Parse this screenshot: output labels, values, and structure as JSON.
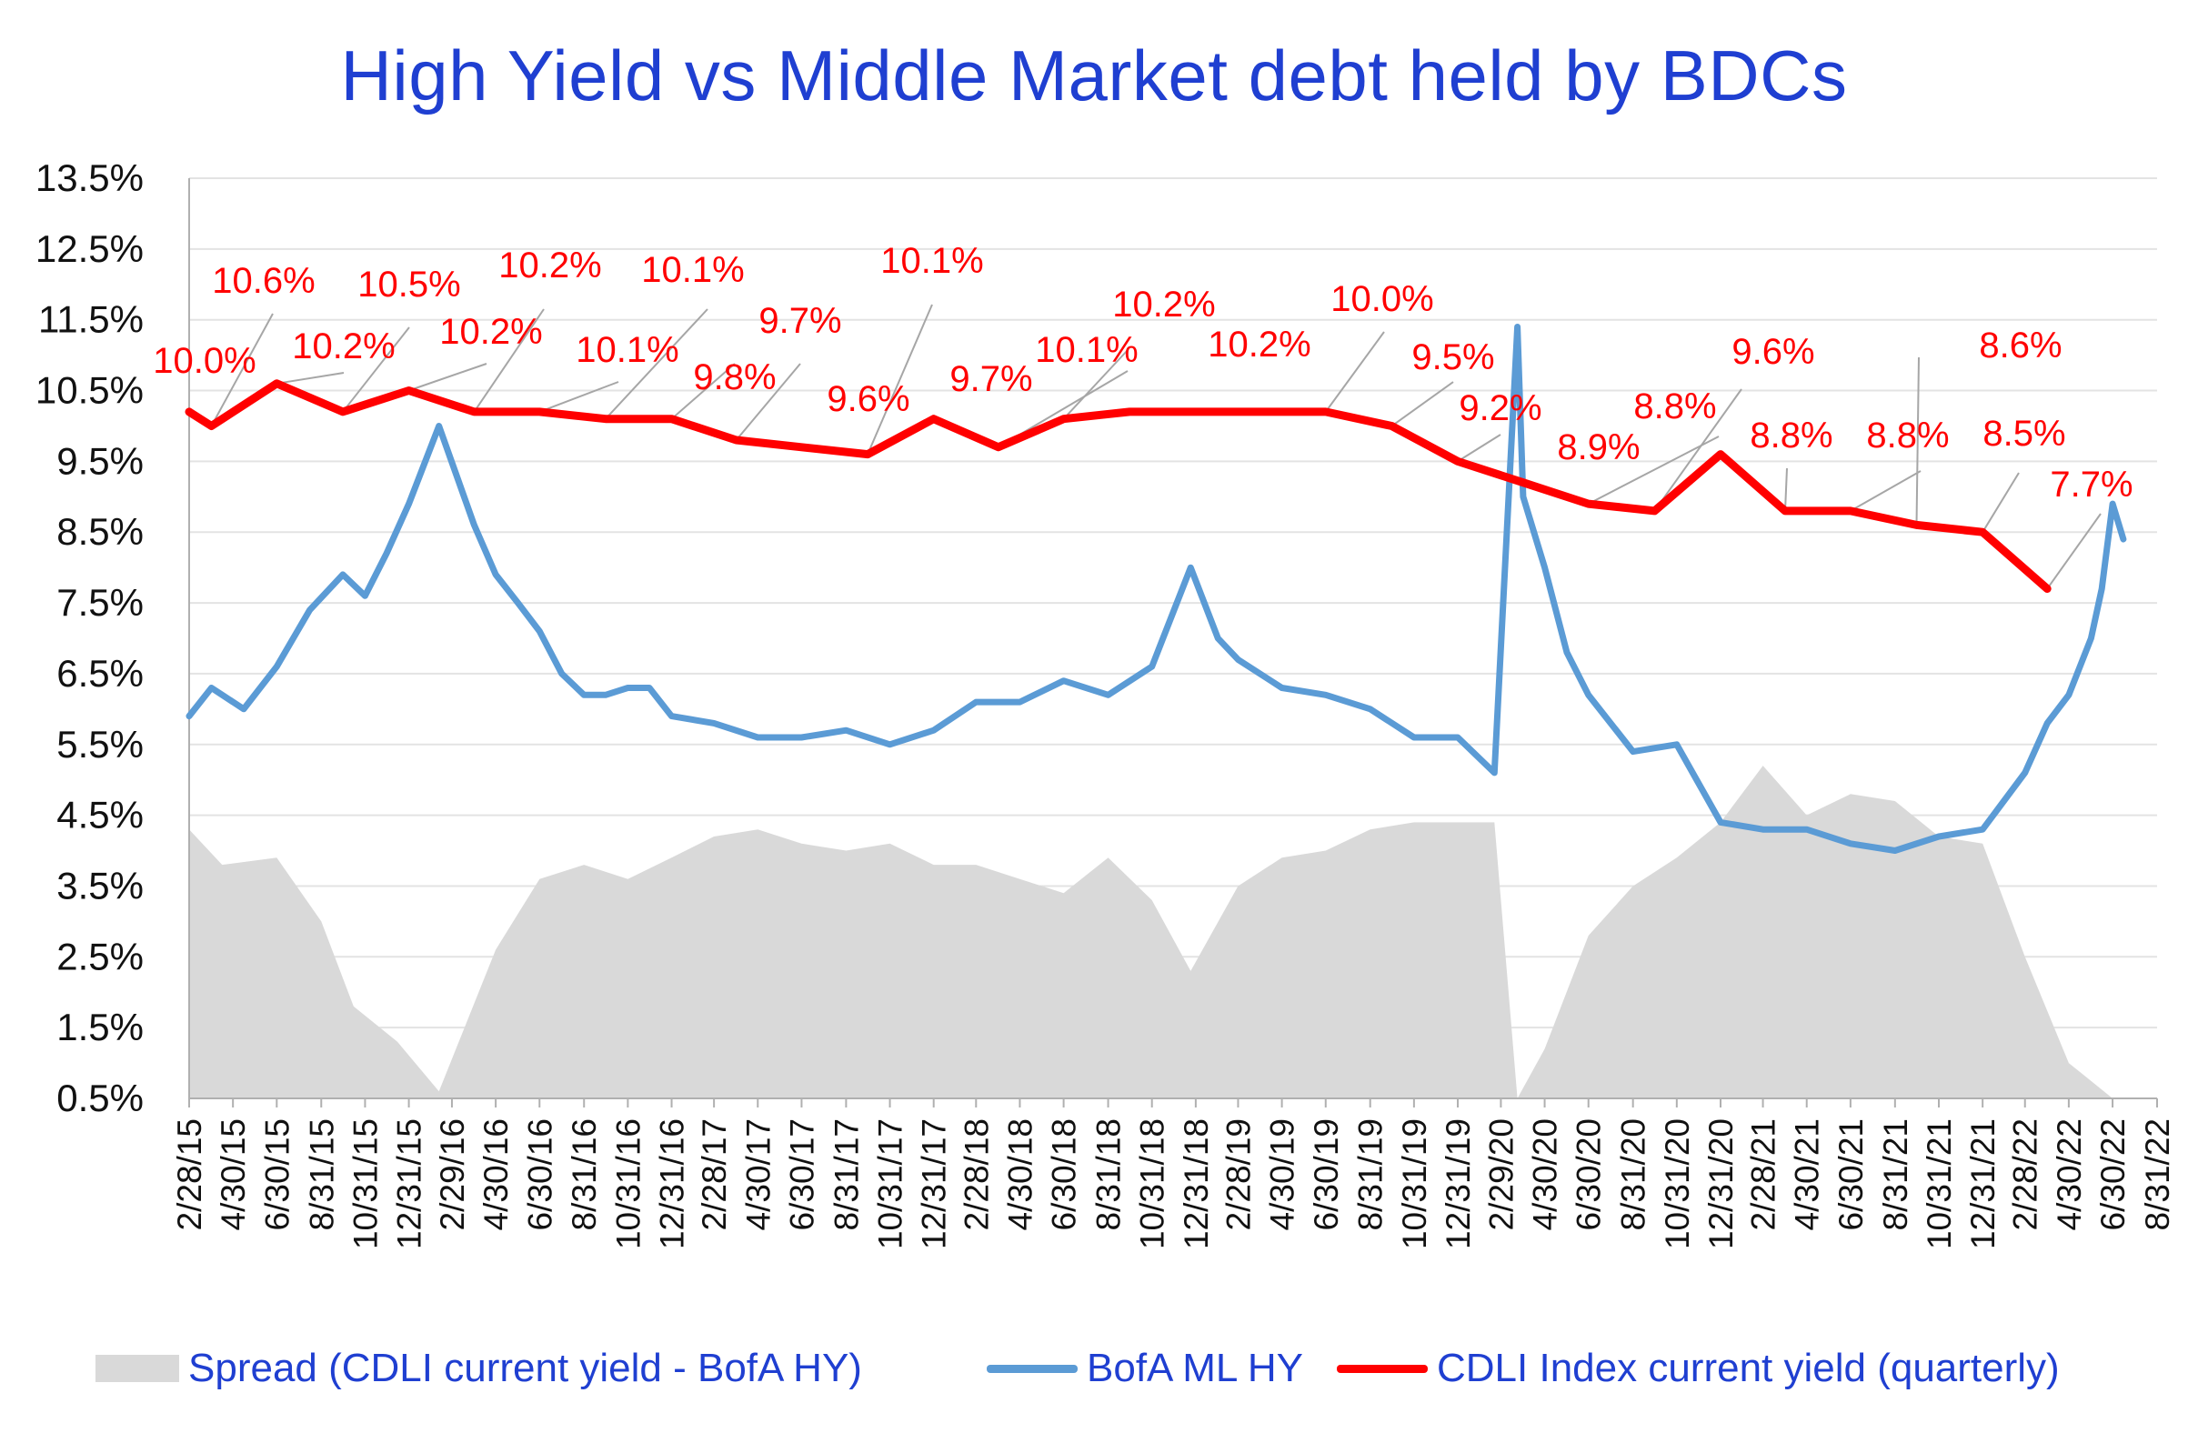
{
  "chart_data": {
    "type": "area",
    "title": "High Yield  vs  Middle Market debt held by BDCs",
    "xlabel": "",
    "ylabel": "",
    "ylim": [
      0.5,
      13.5
    ],
    "y_ticks": [
      "0.5%",
      "1.5%",
      "2.5%",
      "3.5%",
      "4.5%",
      "5.5%",
      "6.5%",
      "7.5%",
      "8.5%",
      "9.5%",
      "10.5%",
      "11.5%",
      "12.5%",
      "13.5%"
    ],
    "x_ticks": [
      "2/28/15",
      "4/30/15",
      "6/30/15",
      "8/31/15",
      "10/31/15",
      "12/31/15",
      "2/29/16",
      "4/30/16",
      "6/30/16",
      "8/31/16",
      "10/31/16",
      "12/31/16",
      "2/28/17",
      "4/30/17",
      "6/30/17",
      "8/31/17",
      "10/31/17",
      "12/31/17",
      "2/28/18",
      "4/30/18",
      "6/30/18",
      "8/31/18",
      "10/31/18",
      "12/31/18",
      "2/28/19",
      "4/30/19",
      "6/30/19",
      "8/31/19",
      "10/31/19",
      "12/31/19",
      "2/29/20",
      "4/30/20",
      "6/30/20",
      "8/31/20",
      "10/31/20",
      "12/31/20",
      "2/28/21",
      "4/30/21",
      "6/30/21",
      "8/31/21",
      "10/31/21",
      "12/31/21",
      "2/28/22",
      "4/30/22",
      "6/30/22",
      "8/31/22"
    ],
    "grid": true,
    "legend_position": "bottom",
    "series": [
      {
        "name": "Spread (CDLI current yield - BofA HY)",
        "type": "area",
        "color": "#d9d9d9",
        "x": [
          "2015-02-28",
          "2015-04-15",
          "2015-06-30",
          "2015-08-31",
          "2015-10-15",
          "2015-12-15",
          "2016-02-11",
          "2016-04-30",
          "2016-06-30",
          "2016-08-31",
          "2016-10-31",
          "2016-12-31",
          "2017-02-28",
          "2017-04-30",
          "2017-06-30",
          "2017-08-31",
          "2017-10-31",
          "2017-12-31",
          "2018-02-28",
          "2018-04-30",
          "2018-06-30",
          "2018-08-31",
          "2018-10-31",
          "2018-12-24",
          "2019-02-28",
          "2019-04-30",
          "2019-06-30",
          "2019-08-31",
          "2019-10-31",
          "2019-12-31",
          "2020-02-20",
          "2020-03-23",
          "2020-04-30",
          "2020-06-30",
          "2020-08-31",
          "2020-10-31",
          "2020-12-31",
          "2021-02-28",
          "2021-04-30",
          "2021-06-30",
          "2021-08-31",
          "2021-10-31",
          "2021-12-31",
          "2022-02-28",
          "2022-04-30",
          "2022-06-30",
          "2022-07-15"
        ],
        "values": [
          4.3,
          3.8,
          3.9,
          3.0,
          1.8,
          1.3,
          0.6,
          2.6,
          3.6,
          3.8,
          3.6,
          3.9,
          4.2,
          4.3,
          4.1,
          4.0,
          4.1,
          3.8,
          3.8,
          3.6,
          3.4,
          3.9,
          3.3,
          2.3,
          3.5,
          3.9,
          4.0,
          4.3,
          4.4,
          4.4,
          4.4,
          0.5,
          1.2,
          2.8,
          3.5,
          3.9,
          4.4,
          5.2,
          4.5,
          4.8,
          4.7,
          4.2,
          4.1,
          2.5,
          1.0,
          0.5,
          0.5
        ]
      },
      {
        "name": "BofA ML HY",
        "type": "line",
        "color": "#5b9bd5",
        "x": [
          "2015-02-28",
          "2015-03-31",
          "2015-05-15",
          "2015-06-30",
          "2015-08-15",
          "2015-09-30",
          "2015-10-31",
          "2015-11-30",
          "2015-12-31",
          "2016-02-11",
          "2016-03-31",
          "2016-04-30",
          "2016-05-31",
          "2016-06-30",
          "2016-07-31",
          "2016-08-31",
          "2016-09-30",
          "2016-10-31",
          "2016-11-30",
          "2016-12-31",
          "2017-02-28",
          "2017-04-30",
          "2017-06-30",
          "2017-08-31",
          "2017-10-31",
          "2017-12-31",
          "2018-02-28",
          "2018-04-30",
          "2018-06-30",
          "2018-08-31",
          "2018-10-31",
          "2018-12-24",
          "2019-01-31",
          "2019-02-28",
          "2019-04-30",
          "2019-06-30",
          "2019-08-31",
          "2019-10-31",
          "2019-12-31",
          "2020-02-20",
          "2020-03-23",
          "2020-03-31",
          "2020-04-30",
          "2020-05-31",
          "2020-06-30",
          "2020-08-31",
          "2020-10-31",
          "2020-12-31",
          "2021-02-28",
          "2021-04-30",
          "2021-06-30",
          "2021-08-31",
          "2021-10-31",
          "2021-12-31",
          "2022-02-28",
          "2022-03-31",
          "2022-04-30",
          "2022-05-31",
          "2022-06-15",
          "2022-06-30",
          "2022-07-15"
        ],
        "values": [
          5.9,
          6.3,
          6.0,
          6.6,
          7.4,
          7.9,
          7.6,
          8.2,
          8.9,
          10.0,
          8.6,
          7.9,
          7.5,
          7.1,
          6.5,
          6.2,
          6.2,
          6.3,
          6.3,
          5.9,
          5.8,
          5.6,
          5.6,
          5.7,
          5.5,
          5.7,
          6.1,
          6.1,
          6.4,
          6.2,
          6.6,
          8.0,
          7.0,
          6.7,
          6.3,
          6.2,
          6.0,
          5.6,
          5.6,
          5.1,
          11.4,
          9.0,
          8.0,
          6.8,
          6.2,
          5.4,
          5.5,
          4.4,
          4.3,
          4.3,
          4.1,
          4.0,
          4.2,
          4.3,
          5.1,
          5.8,
          6.2,
          7.0,
          7.7,
          8.9,
          8.4
        ]
      },
      {
        "name": "CDLI Index current yield (quarterly)",
        "type": "line",
        "color": "#ff0000",
        "x": [
          "2015-02-28",
          "2015-03-31",
          "2015-06-30",
          "2015-09-30",
          "2015-12-31",
          "2016-03-31",
          "2016-06-30",
          "2016-09-30",
          "2016-12-31",
          "2017-03-31",
          "2017-06-30",
          "2017-09-30",
          "2017-12-31",
          "2018-03-31",
          "2018-06-30",
          "2018-09-30",
          "2018-12-31",
          "2019-03-31",
          "2019-06-30",
          "2019-09-30",
          "2019-12-31",
          "2020-03-31",
          "2020-06-30",
          "2020-09-30",
          "2020-12-31",
          "2021-03-31",
          "2021-06-30",
          "2021-09-30",
          "2021-12-31",
          "2022-03-31"
        ],
        "values": [
          10.2,
          10.0,
          10.6,
          10.2,
          10.5,
          10.2,
          10.2,
          10.1,
          10.1,
          9.8,
          9.7,
          9.6,
          10.1,
          9.7,
          10.1,
          10.2,
          10.2,
          10.2,
          10.2,
          10.0,
          9.5,
          9.2,
          8.9,
          8.8,
          9.6,
          8.8,
          8.8,
          8.6,
          8.5,
          7.7
        ]
      }
    ],
    "annotations": [
      "10.0%",
      "10.6%",
      "10.2%",
      "10.5%",
      "10.2%",
      "10.2%",
      "10.1%",
      "10.1%",
      "9.8%",
      "9.7%",
      "9.6%",
      "10.1%",
      "9.7%",
      "10.1%",
      "10.2%",
      "10.2%",
      "10.0%",
      "9.5%",
      "9.2%",
      "8.9%",
      "8.8%",
      "9.6%",
      "8.8%",
      "8.8%",
      "8.6%",
      "8.5%",
      "7.7%"
    ]
  }
}
